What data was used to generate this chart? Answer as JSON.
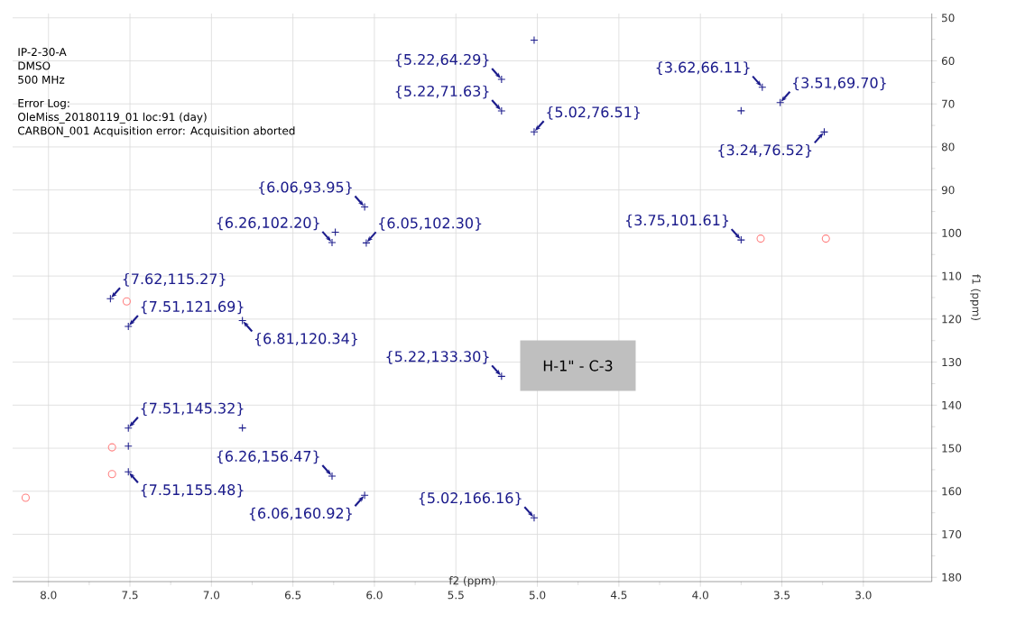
{
  "chart_data": {
    "type": "scatter",
    "xlabel": "f2 (ppm)",
    "ylabel": "f1 (ppm)",
    "xlim": [
      8.22,
      2.58
    ],
    "ylim": [
      181,
      49
    ],
    "xticks": [
      {
        "value": 8,
        "label": "8.0"
      },
      {
        "value": 7.5,
        "label": "7.5"
      },
      {
        "value": 7,
        "label": "7.0"
      },
      {
        "value": 6.5,
        "label": "6.5"
      },
      {
        "value": 6,
        "label": "6.0"
      },
      {
        "value": 5.5,
        "label": "5.5"
      },
      {
        "value": 5,
        "label": "5.0"
      },
      {
        "value": 4.5,
        "label": "4.5"
      },
      {
        "value": 4,
        "label": "4.0"
      },
      {
        "value": 3.5,
        "label": "3.5"
      },
      {
        "value": 3,
        "label": "3.0"
      }
    ],
    "yticks": [
      50,
      60,
      70,
      80,
      90,
      100,
      110,
      120,
      130,
      140,
      150,
      160,
      170,
      180
    ],
    "grid": true,
    "series": [
      {
        "color": "#1c1c8c",
        "marker": "cross",
        "x": [
          5.22,
          5.22,
          5.02,
          3.62,
          3.51,
          3.24,
          6.06,
          6.26,
          6.05,
          3.75,
          7.62,
          7.51,
          6.81,
          5.22,
          7.51,
          6.26,
          7.51,
          6.06,
          5.02,
          5.02,
          3.75,
          7.51,
          6.81,
          6.24
        ],
        "values": [
          64.29,
          71.63,
          76.51,
          66.11,
          69.7,
          76.52,
          93.95,
          102.2,
          102.3,
          101.61,
          115.27,
          121.69,
          120.34,
          133.3,
          145.32,
          156.47,
          155.48,
          160.92,
          166.16,
          55.2,
          71.6,
          149.5,
          145.3,
          99.8
        ]
      },
      {
        "color": "#ff8080",
        "marker": "circle",
        "x": [
          7.61,
          7.61,
          8.14,
          7.52,
          3.63,
          3.23
        ],
        "values": [
          149.8,
          156.0,
          161.5,
          115.9,
          101.3,
          101.3
        ]
      }
    ],
    "annotations": [
      "IP-2-30-A",
      "DMSO",
      "500 MHz",
      "Error Log:",
      "OleMiss_20180119_01 loc:91 (day)",
      "CARBON_001 Acquisition error:  Acquisition aborted",
      "H-1\" - C-3",
      {
        "text": "{5.22,64.29}",
        "x": 5.22,
        "y": 64.29
      },
      {
        "text": "{5.22,71.63}",
        "x": 5.22,
        "y": 71.63
      },
      {
        "text": "{5.02,76.51}",
        "x": 5.02,
        "y": 76.51
      },
      {
        "text": "{3.62,66.11}",
        "x": 3.62,
        "y": 66.11
      },
      {
        "text": "{3.51,69.70}",
        "x": 3.51,
        "y": 69.7
      },
      {
        "text": "{3.24,76.52}",
        "x": 3.24,
        "y": 76.52
      },
      {
        "text": "{6.06,93.95}",
        "x": 6.06,
        "y": 93.95
      },
      {
        "text": "{6.26,102.20}",
        "x": 6.26,
        "y": 102.2
      },
      {
        "text": "{6.05,102.30}",
        "x": 6.05,
        "y": 102.3
      },
      {
        "text": "{3.75,101.61}",
        "x": 3.75,
        "y": 101.61
      },
      {
        "text": "{7.62,115.27}",
        "x": 7.62,
        "y": 115.27
      },
      {
        "text": "{7.51,121.69}",
        "x": 7.51,
        "y": 121.69
      },
      {
        "text": "{6.81,120.34}",
        "x": 6.81,
        "y": 120.34
      },
      {
        "text": "{5.22,133.30}",
        "x": 5.22,
        "y": 133.3
      },
      {
        "text": "{7.51,145.32}",
        "x": 7.51,
        "y": 145.32
      },
      {
        "text": "{6.26,156.47}",
        "x": 6.26,
        "y": 156.47
      },
      {
        "text": "{7.51,155.48}",
        "x": 7.51,
        "y": 155.48
      },
      {
        "text": "{6.06,160.92}",
        "x": 6.06,
        "y": 160.92
      },
      {
        "text": "{5.02,166.16}",
        "x": 5.02,
        "y": 166.16
      }
    ]
  }
}
